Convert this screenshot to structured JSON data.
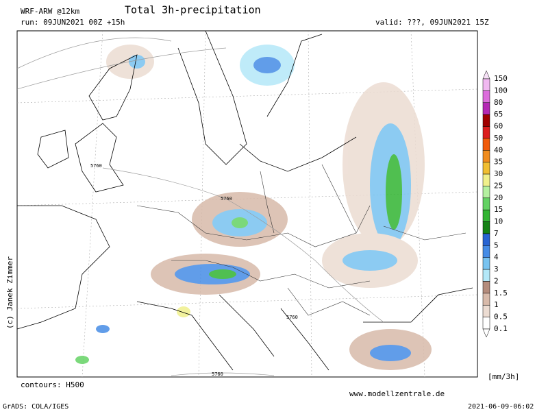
{
  "header": {
    "model": "WRF-ARW @12km",
    "title": "Total 3h-precipitation",
    "run": "run: 09JUN2021 00Z +15h",
    "valid": "valid: ???, 09JUN2021 15Z"
  },
  "credit": "(c) Janek Zimmer",
  "contour_note": "contours: H500",
  "contour_labels": [
    "5760",
    "5760",
    "5760",
    "5760"
  ],
  "legend": {
    "unit": "[mm/3h]",
    "levels": [
      {
        "label": "150",
        "color": "#f6e0f6"
      },
      {
        "label": "100",
        "color": "#f0b8f0"
      },
      {
        "label": "80",
        "color": "#dc6edc"
      },
      {
        "label": "65",
        "color": "#b428b4"
      },
      {
        "label": "60",
        "color": "#a00000"
      },
      {
        "label": "50",
        "color": "#dc1e1e"
      },
      {
        "label": "40",
        "color": "#f05a0a"
      },
      {
        "label": "35",
        "color": "#f08c1e"
      },
      {
        "label": "30",
        "color": "#f0be32"
      },
      {
        "label": "25",
        "color": "#f0f08c"
      },
      {
        "label": "20",
        "color": "#b4f0a0"
      },
      {
        "label": "15",
        "color": "#64d264"
      },
      {
        "label": "10",
        "color": "#32b432"
      },
      {
        "label": "7",
        "color": "#148214"
      },
      {
        "label": "5",
        "color": "#2864d2"
      },
      {
        "label": "4",
        "color": "#468ce6"
      },
      {
        "label": "3",
        "color": "#78c3f0"
      },
      {
        "label": "2",
        "color": "#b4e8f8"
      },
      {
        "label": "1.5",
        "color": "#b48c7c"
      },
      {
        "label": "1",
        "color": "#d8baaa"
      },
      {
        "label": "0.5",
        "color": "#ecdcd2"
      },
      {
        "label": "0.1",
        "color": "#ffffff"
      }
    ]
  },
  "footer": {
    "website": "www.modellzentrale.de",
    "software": "GrADS: COLA/IGES",
    "timestamp": "2021-06-09-06:02"
  }
}
